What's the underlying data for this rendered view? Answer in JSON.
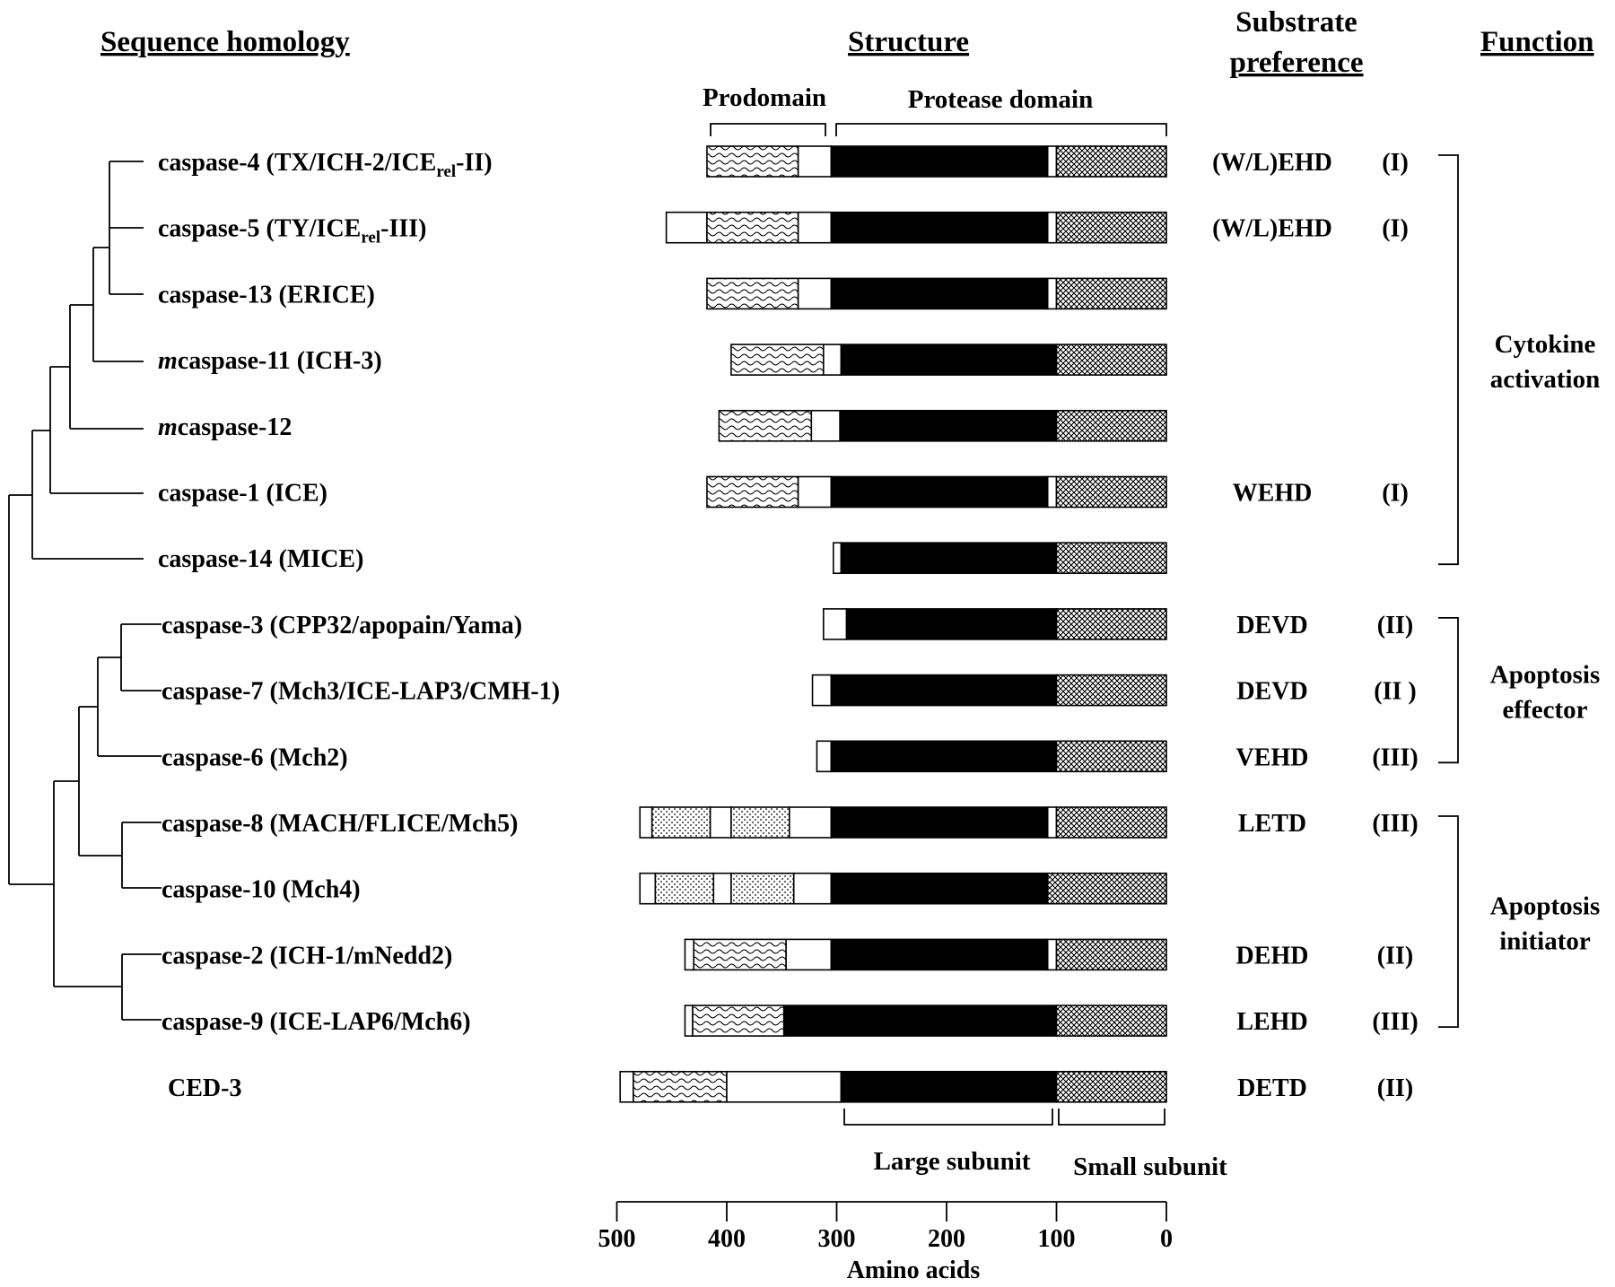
{
  "headings": {
    "sequence_homology": "Sequence homology",
    "structure": "Structure",
    "substrate_line1": "Substrate",
    "substrate_line2": "preference",
    "function": "Function"
  },
  "structure_labels": {
    "prodomain": "Prodomain",
    "protease_domain": "Protease domain",
    "large_subunit": "Large subunit",
    "small_subunit": "Small subunit"
  },
  "axis": {
    "title": "Amino acids",
    "ticks": [
      "500",
      "400",
      "300",
      "200",
      "100",
      "0"
    ],
    "tick_values": [
      500,
      400,
      300,
      200,
      100,
      0
    ]
  },
  "caspases": [
    {
      "id": "casp4",
      "name_pre": "caspase-4 (TX/ICH-2/ICE",
      "name_sub": "rel",
      "name_post": "-II)",
      "substrate": "(W/L)EHD",
      "group": "(I)",
      "segments": [
        {
          "from": 418,
          "to": 335,
          "fill": "wave"
        },
        {
          "from": 335,
          "to": 305,
          "fill": "white"
        },
        {
          "from": 305,
          "to": 108,
          "fill": "black"
        },
        {
          "from": 108,
          "to": 100,
          "fill": "white"
        },
        {
          "from": 100,
          "to": 0,
          "fill": "cross"
        }
      ]
    },
    {
      "id": "casp5",
      "name_pre": "caspase-5 (TY/ICE",
      "name_sub": "rel",
      "name_post": "-III)",
      "substrate": "(W/L)EHD",
      "group": "(I)",
      "segments": [
        {
          "from": 455,
          "to": 418,
          "fill": "white"
        },
        {
          "from": 418,
          "to": 335,
          "fill": "wave"
        },
        {
          "from": 335,
          "to": 305,
          "fill": "white"
        },
        {
          "from": 305,
          "to": 108,
          "fill": "black"
        },
        {
          "from": 108,
          "to": 100,
          "fill": "white"
        },
        {
          "from": 100,
          "to": 0,
          "fill": "cross"
        }
      ]
    },
    {
      "id": "casp13",
      "name_pre": "caspase-13 (ERICE)",
      "name_sub": "",
      "name_post": "",
      "substrate": "",
      "group": "",
      "segments": [
        {
          "from": 418,
          "to": 335,
          "fill": "wave"
        },
        {
          "from": 335,
          "to": 305,
          "fill": "white"
        },
        {
          "from": 305,
          "to": 108,
          "fill": "black"
        },
        {
          "from": 108,
          "to": 100,
          "fill": "white"
        },
        {
          "from": 100,
          "to": 0,
          "fill": "cross"
        }
      ]
    },
    {
      "id": "mcasp11",
      "name_italic": "m",
      "name_pre": "caspase-11 (ICH-3)",
      "name_sub": "",
      "name_post": "",
      "substrate": "",
      "group": "",
      "segments": [
        {
          "from": 396,
          "to": 312,
          "fill": "wave"
        },
        {
          "from": 312,
          "to": 296,
          "fill": "white"
        },
        {
          "from": 296,
          "to": 100,
          "fill": "black"
        },
        {
          "from": 100,
          "to": 0,
          "fill": "cross"
        }
      ]
    },
    {
      "id": "mcasp12",
      "name_italic": "m",
      "name_pre": "caspase-12",
      "name_sub": "",
      "name_post": "",
      "substrate": "",
      "group": "",
      "segments": [
        {
          "from": 407,
          "to": 323,
          "fill": "wave"
        },
        {
          "from": 323,
          "to": 297,
          "fill": "white"
        },
        {
          "from": 297,
          "to": 100,
          "fill": "black"
        },
        {
          "from": 100,
          "to": 0,
          "fill": "cross"
        }
      ]
    },
    {
      "id": "casp1",
      "name_pre": "caspase-1 (ICE)",
      "name_sub": "",
      "name_post": "",
      "substrate": "WEHD",
      "group": "(I)",
      "segments": [
        {
          "from": 418,
          "to": 335,
          "fill": "wave"
        },
        {
          "from": 335,
          "to": 305,
          "fill": "white"
        },
        {
          "from": 305,
          "to": 108,
          "fill": "black"
        },
        {
          "from": 108,
          "to": 100,
          "fill": "white"
        },
        {
          "from": 100,
          "to": 0,
          "fill": "cross"
        }
      ]
    },
    {
      "id": "casp14",
      "name_pre": "caspase-14 (MICE)",
      "name_sub": "",
      "name_post": "",
      "substrate": "",
      "group": "",
      "segments": [
        {
          "from": 303,
          "to": 296,
          "fill": "white"
        },
        {
          "from": 296,
          "to": 100,
          "fill": "black"
        },
        {
          "from": 100,
          "to": 0,
          "fill": "cross"
        }
      ]
    },
    {
      "id": "casp3",
      "name_pre": "caspase-3 (CPP32/apopain/Yama)",
      "name_sub": "",
      "name_post": "",
      "substrate": "DEVD",
      "group": "(II)",
      "segments": [
        {
          "from": 312,
          "to": 291,
          "fill": "white"
        },
        {
          "from": 291,
          "to": 100,
          "fill": "black"
        },
        {
          "from": 100,
          "to": 0,
          "fill": "cross"
        }
      ]
    },
    {
      "id": "casp7",
      "name_pre": "caspase-7 (Mch3/ICE-LAP3/CMH-1)",
      "name_sub": "",
      "name_post": "",
      "substrate": "DEVD",
      "group": "(II )",
      "segments": [
        {
          "from": 322,
          "to": 305,
          "fill": "white"
        },
        {
          "from": 305,
          "to": 100,
          "fill": "black"
        },
        {
          "from": 100,
          "to": 0,
          "fill": "cross"
        }
      ]
    },
    {
      "id": "casp6",
      "name_pre": "caspase-6 (Mch2)",
      "name_sub": "",
      "name_post": "",
      "substrate": "VEHD",
      "group": "(III)",
      "segments": [
        {
          "from": 318,
          "to": 305,
          "fill": "white"
        },
        {
          "from": 305,
          "to": 100,
          "fill": "black"
        },
        {
          "from": 100,
          "to": 0,
          "fill": "cross"
        }
      ]
    },
    {
      "id": "casp8",
      "name_pre": "caspase-8 (MACH/FLICE/Mch5)",
      "name_sub": "",
      "name_post": "",
      "substrate": "LETD",
      "group": "(III)",
      "segments": [
        {
          "from": 479,
          "to": 468,
          "fill": "white"
        },
        {
          "from": 468,
          "to": 415,
          "fill": "dots"
        },
        {
          "from": 415,
          "to": 396,
          "fill": "white"
        },
        {
          "from": 396,
          "to": 343,
          "fill": "dots"
        },
        {
          "from": 343,
          "to": 305,
          "fill": "white"
        },
        {
          "from": 305,
          "to": 108,
          "fill": "black"
        },
        {
          "from": 108,
          "to": 100,
          "fill": "white"
        },
        {
          "from": 100,
          "to": 0,
          "fill": "cross"
        }
      ]
    },
    {
      "id": "casp10",
      "name_pre": "caspase-10 (Mch4)",
      "name_sub": "",
      "name_post": "",
      "substrate": "",
      "group": "",
      "segments": [
        {
          "from": 479,
          "to": 465,
          "fill": "white"
        },
        {
          "from": 465,
          "to": 412,
          "fill": "dots"
        },
        {
          "from": 412,
          "to": 396,
          "fill": "white"
        },
        {
          "from": 396,
          "to": 339,
          "fill": "dots"
        },
        {
          "from": 339,
          "to": 305,
          "fill": "white"
        },
        {
          "from": 305,
          "to": 108,
          "fill": "black"
        },
        {
          "from": 108,
          "to": 0,
          "fill": "cross"
        }
      ]
    },
    {
      "id": "casp2",
      "name_pre": "caspase-2 (ICH-1/mNedd2)",
      "name_sub": "",
      "name_post": "",
      "substrate": "DEHD",
      "group": "(II)",
      "segments": [
        {
          "from": 438,
          "to": 430,
          "fill": "white"
        },
        {
          "from": 430,
          "to": 346,
          "fill": "wave"
        },
        {
          "from": 346,
          "to": 305,
          "fill": "white"
        },
        {
          "from": 305,
          "to": 108,
          "fill": "black"
        },
        {
          "from": 108,
          "to": 100,
          "fill": "white"
        },
        {
          "from": 100,
          "to": 0,
          "fill": "cross"
        }
      ]
    },
    {
      "id": "casp9",
      "name_pre": "caspase-9 (ICE-LAP6/Mch6)",
      "name_sub": "",
      "name_post": "",
      "substrate": "LEHD",
      "group": "(III)",
      "segments": [
        {
          "from": 438,
          "to": 431,
          "fill": "white"
        },
        {
          "from": 431,
          "to": 348,
          "fill": "wave"
        },
        {
          "from": 348,
          "to": 100,
          "fill": "black"
        },
        {
          "from": 100,
          "to": 0,
          "fill": "cross"
        }
      ]
    },
    {
      "id": "ced3",
      "name_pre": "CED-3",
      "name_sub": "",
      "name_post": "",
      "substrate": "DETD",
      "group": "(II)",
      "segments": [
        {
          "from": 497,
          "to": 485,
          "fill": "white"
        },
        {
          "from": 485,
          "to": 400,
          "fill": "wave"
        },
        {
          "from": 400,
          "to": 296,
          "fill": "white"
        },
        {
          "from": 296,
          "to": 100,
          "fill": "black"
        },
        {
          "from": 100,
          "to": 0,
          "fill": "cross"
        }
      ]
    }
  ],
  "functions": [
    {
      "id": "cytokine",
      "line1": "Cytokine",
      "line2": "activation",
      "first_row": 0,
      "last_row": 6,
      "tick_rows": []
    },
    {
      "id": "effector",
      "line1": "Apoptosis",
      "line2": "effector",
      "first_row": 7,
      "last_row": 9,
      "tick_rows": [
        7,
        9
      ]
    },
    {
      "id": "initiator",
      "line1": "Apoptosis",
      "line2": "initiator",
      "first_row": 10,
      "last_row": 13,
      "tick_rows": [
        10,
        13
      ]
    }
  ]
}
